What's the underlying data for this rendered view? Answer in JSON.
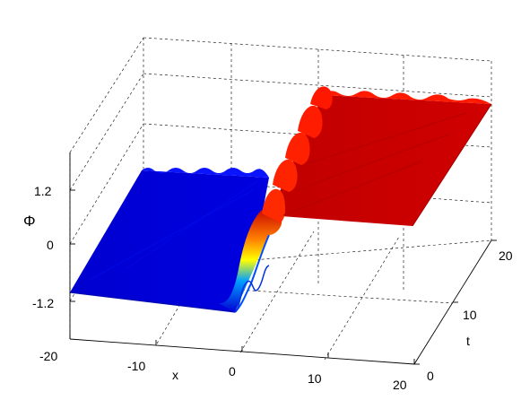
{
  "chart_data": {
    "type": "surface",
    "zlabel": "Φ",
    "xlabel": "x",
    "ylabel": "t",
    "x_ticks": [
      "-20",
      "-10",
      "0",
      "10",
      "20"
    ],
    "t_ticks": [
      "0",
      "10",
      "20"
    ],
    "z_ticks": [
      "1.2",
      "0",
      "-1.2"
    ],
    "xlim": [
      -20,
      20
    ],
    "tlim": [
      0,
      20
    ],
    "zlim": [
      -1.2,
      1.2
    ],
    "grid": true,
    "colormap": "jet",
    "colors": {
      "low": "#0000d4",
      "high": "#c90000",
      "mid": "#ffff00",
      "edge_low": "#0a14ff",
      "edge_high": "#ff1a00"
    },
    "surface": {
      "description_points": [
        {
          "x": -20,
          "phi": -1.0
        },
        {
          "x": -2,
          "phi": -1.0
        },
        {
          "x": 0,
          "phi": 0.0
        },
        {
          "x": 2,
          "phi": 1.0
        },
        {
          "x": 20,
          "phi": 1.0
        }
      ],
      "kink_slope_per_t": 0.35,
      "ripple_count": 5
    }
  }
}
